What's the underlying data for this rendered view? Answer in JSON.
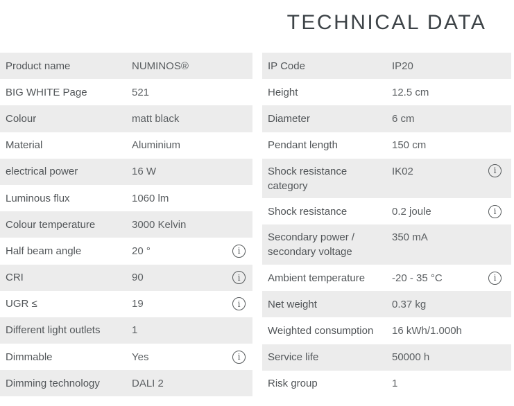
{
  "page": {
    "title": "TECHNICAL DATA"
  },
  "colors": {
    "row_shade": "#ececec",
    "label_text": "#515558",
    "value_text": "#5a5e61",
    "title_text": "#3d4347",
    "icon_outline": "#54585a"
  },
  "icons": {
    "info_glyph": "i"
  },
  "left_table": {
    "rows": [
      {
        "label": "Product name",
        "value": "NUMINOS®",
        "info": false
      },
      {
        "label": "BIG WHITE Page",
        "value": "521",
        "info": false
      },
      {
        "label": "Colour",
        "value": "matt black",
        "info": false
      },
      {
        "label": "Material",
        "value": "Aluminium",
        "info": false
      },
      {
        "label": "electrical power",
        "value": "16 W",
        "info": false
      },
      {
        "label": "Luminous flux",
        "value": "1060 lm",
        "info": false
      },
      {
        "label": "Colour temperature",
        "value": "3000 Kelvin",
        "info": false
      },
      {
        "label": "Half beam angle",
        "value": "20 °",
        "info": true
      },
      {
        "label": "CRI",
        "value": "90",
        "info": true
      },
      {
        "label": "UGR ≤",
        "value": "19",
        "info": true
      },
      {
        "label": "Different light outlets",
        "value": "1",
        "info": false
      },
      {
        "label": "Dimmable",
        "value": "Yes",
        "info": true
      },
      {
        "label": "Dimming technology",
        "value": "DALI 2",
        "info": false
      }
    ]
  },
  "right_table": {
    "rows": [
      {
        "label": "IP Code",
        "value": "IP20",
        "info": false
      },
      {
        "label": "Height",
        "value": "12.5 cm",
        "info": false
      },
      {
        "label": "Diameter",
        "value": "6 cm",
        "info": false
      },
      {
        "label": "Pendant length",
        "value": "150 cm",
        "info": false
      },
      {
        "label": "Shock resistance category",
        "value": "IK02",
        "info": true,
        "tall": true
      },
      {
        "label": "Shock resistance",
        "value": "0.2 joule",
        "info": true
      },
      {
        "label": "Secondary power / secondary voltage",
        "value": "350 mA",
        "info": false,
        "tall": true
      },
      {
        "label": "Ambient temperature",
        "value": "-20 - 35 °C",
        "info": true
      },
      {
        "label": "Net weight",
        "value": "0.37 kg",
        "info": false
      },
      {
        "label": "Weighted consumption",
        "value": "16 kWh/1.000h",
        "info": false
      },
      {
        "label": "Service life",
        "value": "50000 h",
        "info": false
      },
      {
        "label": "Risk group",
        "value": "1",
        "info": false
      }
    ]
  }
}
